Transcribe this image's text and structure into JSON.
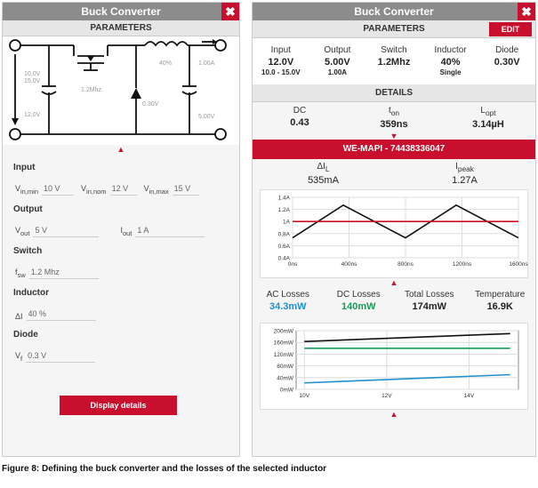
{
  "left": {
    "title": "Buck Converter",
    "close": "✖",
    "parameters_header": "PARAMETERS",
    "schematic": {
      "vin_range": "10.0V\n15.0V",
      "vin_low": "12.0V",
      "freq": "1.2Mhz",
      "ripple": "40%",
      "diode_vf": "0.30V",
      "iout": "1.00A",
      "vout": "5.00V"
    },
    "input": {
      "title": "Input",
      "vmin_label": "V",
      "vmin_sub": "in,min",
      "vmin": "10 V",
      "vnom_label": "V",
      "vnom_sub": "in,nom",
      "vnom": "12 V",
      "vmax_label": "V",
      "vmax_sub": "in,max",
      "vmax": "15 V"
    },
    "output": {
      "title": "Output",
      "vout_label": "V",
      "vout_sub": "out",
      "vout": "5 V",
      "iout_label": "I",
      "iout_sub": "out",
      "iout": "1 A"
    },
    "switch": {
      "title": "Switch",
      "fsw_label": "f",
      "fsw_sub": "sw",
      "fsw": "1.2 Mhz"
    },
    "inductor": {
      "title": "Inductor",
      "di_label": "ΔI",
      "di": "40 %"
    },
    "diode": {
      "title": "Diode",
      "vf_label": "V",
      "vf_sub": "f",
      "vf": "0.3 V"
    },
    "display_details": "Display details"
  },
  "right": {
    "title": "Buck Converter",
    "close": "✖",
    "parameters_header": "PARAMETERS",
    "edit": "EDIT",
    "params": [
      {
        "label": "Input",
        "value": "12.0V",
        "sub": "10.0 - 15.0V"
      },
      {
        "label": "Output",
        "value": "5.00V",
        "sub": "1.00A"
      },
      {
        "label": "Switch",
        "value": "1.2Mhz",
        "sub": ""
      },
      {
        "label": "Inductor",
        "value": "40%",
        "sub": "Single"
      },
      {
        "label": "Diode",
        "value": "0.30V",
        "sub": ""
      }
    ],
    "details_header": "DETAILS",
    "details": [
      {
        "label": "DC",
        "sub": "",
        "value": "0.43"
      },
      {
        "label": "t",
        "sub": "on",
        "value": "359ns"
      },
      {
        "label": "L",
        "sub": "opt",
        "value": "3.14µH"
      }
    ],
    "part_bar": "WE-MAPI - 74438336047",
    "ripple": [
      {
        "label": "ΔI",
        "sub": "L",
        "value": "535mA"
      },
      {
        "label": "I",
        "sub": "peak",
        "value": "1.27A"
      }
    ],
    "losses": [
      {
        "label": "AC Losses",
        "value": "34.3mW",
        "color": "#1e90d0"
      },
      {
        "label": "DC Losses",
        "value": "140mW",
        "color": "#1a9a5a"
      },
      {
        "label": "Total Losses",
        "value": "174mW",
        "color": "#222222"
      },
      {
        "label": "Temperature",
        "value": "16.9K",
        "color": "#222222"
      }
    ]
  },
  "caption": "Figure 8: Defining the buck converter and the losses of the selected inductor",
  "chart_data": [
    {
      "type": "line",
      "x": [
        0,
        400,
        800,
        1200,
        1600
      ],
      "xticks": [
        "0ns",
        "400ns",
        "800ns",
        "1200ns",
        "1600ns"
      ],
      "yticks": [
        "0.4A",
        "0.6A",
        "0.8A",
        "1A",
        "1.2A",
        "1.4A"
      ],
      "ylim": [
        0.4,
        1.4
      ],
      "xlim": [
        0,
        1600
      ],
      "grid": true,
      "series": [
        {
          "color": "#111111",
          "x": [
            0,
            359,
            800,
            1159,
            1600
          ],
          "y": [
            0.73,
            1.27,
            0.73,
            1.27,
            0.73
          ]
        },
        {
          "color": "#cc1122",
          "x": [
            0,
            1600
          ],
          "y": [
            1.0,
            1.0
          ]
        }
      ]
    },
    {
      "type": "line",
      "xticks": [
        "10V",
        "12V",
        "14V"
      ],
      "xtick_values": [
        10,
        12,
        14
      ],
      "xlim": [
        9.8,
        15.2
      ],
      "yticks": [
        "0mW",
        "40mW",
        "80mW",
        "120mW",
        "160mW",
        "200mW"
      ],
      "ytick_values": [
        0,
        40,
        80,
        120,
        160,
        200
      ],
      "ylim": [
        0,
        200
      ],
      "grid": true,
      "series": [
        {
          "color": "#111111",
          "x": [
            10,
            15
          ],
          "y": [
            163,
            190
          ]
        },
        {
          "color": "#1a9a5a",
          "x": [
            10,
            15
          ],
          "y": [
            140,
            140
          ]
        },
        {
          "color": "#1e90d0",
          "x": [
            10,
            15
          ],
          "y": [
            22,
            50
          ]
        }
      ]
    }
  ]
}
